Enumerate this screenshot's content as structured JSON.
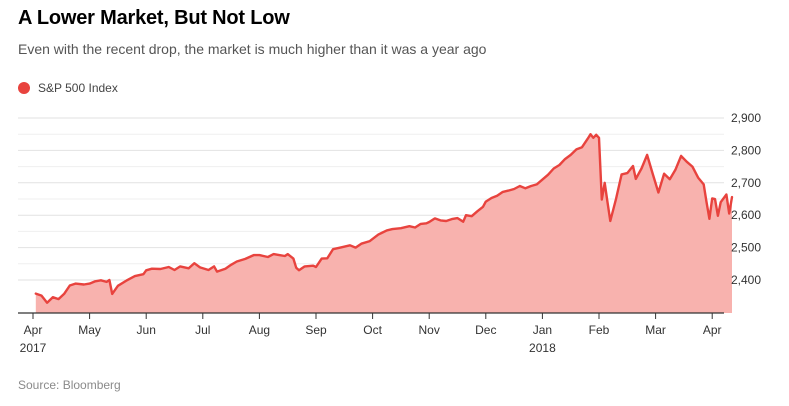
{
  "header": {
    "title": "A Lower Market, But Not Low",
    "subtitle": "Even with the recent drop, the market is much higher than it was a year ago"
  },
  "legend": {
    "label": "S&P 500 Index",
    "color": "#e8433e"
  },
  "footer": {
    "source": "Source: Bloomberg"
  },
  "colors": {
    "line": "#e8433e",
    "fill": "#f8b2ae",
    "grid": "#e2e2e2",
    "axis": "#333333"
  },
  "chart_data": {
    "type": "area",
    "title": "A Lower Market, But Not Low",
    "series_name": "S&P 500 Index",
    "x_domain_months": [
      0,
      12.35
    ],
    "ylim": [
      2300,
      2900
    ],
    "y_ticks": [
      {
        "value": 2400,
        "label": "2,400"
      },
      {
        "value": 2500,
        "label": "2,500"
      },
      {
        "value": 2600,
        "label": "2,600"
      },
      {
        "value": 2700,
        "label": "2,700"
      },
      {
        "value": 2800,
        "label": "2,800"
      },
      {
        "value": 2900,
        "label": "2,900"
      }
    ],
    "x_ticks": [
      {
        "month": 0,
        "label": "Apr",
        "sublabel": "2017"
      },
      {
        "month": 1,
        "label": "May",
        "sublabel": ""
      },
      {
        "month": 2,
        "label": "Jun",
        "sublabel": ""
      },
      {
        "month": 3,
        "label": "Jul",
        "sublabel": ""
      },
      {
        "month": 4,
        "label": "Aug",
        "sublabel": ""
      },
      {
        "month": 5,
        "label": "Sep",
        "sublabel": ""
      },
      {
        "month": 6,
        "label": "Oct",
        "sublabel": ""
      },
      {
        "month": 7,
        "label": "Nov",
        "sublabel": ""
      },
      {
        "month": 8,
        "label": "Dec",
        "sublabel": ""
      },
      {
        "month": 9,
        "label": "Jan",
        "sublabel": "2018"
      },
      {
        "month": 10,
        "label": "Feb",
        "sublabel": ""
      },
      {
        "month": 11,
        "label": "Mar",
        "sublabel": ""
      },
      {
        "month": 12,
        "label": "Apr",
        "sublabel": ""
      }
    ],
    "points": [
      [
        0.05,
        2358
      ],
      [
        0.15,
        2352
      ],
      [
        0.25,
        2330
      ],
      [
        0.35,
        2347
      ],
      [
        0.45,
        2341
      ],
      [
        0.55,
        2357
      ],
      [
        0.65,
        2383
      ],
      [
        0.75,
        2389
      ],
      [
        0.9,
        2386
      ],
      [
        1.0,
        2389
      ],
      [
        1.1,
        2396
      ],
      [
        1.2,
        2399
      ],
      [
        1.3,
        2394
      ],
      [
        1.35,
        2400
      ],
      [
        1.4,
        2357
      ],
      [
        1.5,
        2382
      ],
      [
        1.65,
        2398
      ],
      [
        1.8,
        2412
      ],
      [
        1.95,
        2418
      ],
      [
        2.0,
        2430
      ],
      [
        2.1,
        2435
      ],
      [
        2.25,
        2434
      ],
      [
        2.4,
        2440
      ],
      [
        2.5,
        2431
      ],
      [
        2.6,
        2442
      ],
      [
        2.75,
        2436
      ],
      [
        2.85,
        2452
      ],
      [
        2.95,
        2439
      ],
      [
        3.1,
        2431
      ],
      [
        3.2,
        2442
      ],
      [
        3.25,
        2426
      ],
      [
        3.4,
        2435
      ],
      [
        3.5,
        2447
      ],
      [
        3.6,
        2457
      ],
      [
        3.75,
        2465
      ],
      [
        3.9,
        2477
      ],
      [
        4.0,
        2477
      ],
      [
        4.15,
        2471
      ],
      [
        4.25,
        2480
      ],
      [
        4.35,
        2477
      ],
      [
        4.45,
        2474
      ],
      [
        4.5,
        2480
      ],
      [
        4.6,
        2466
      ],
      [
        4.65,
        2438
      ],
      [
        4.7,
        2430
      ],
      [
        4.8,
        2442
      ],
      [
        4.95,
        2444
      ],
      [
        5.0,
        2440
      ],
      [
        5.1,
        2466
      ],
      [
        5.2,
        2467
      ],
      [
        5.3,
        2495
      ],
      [
        5.45,
        2501
      ],
      [
        5.6,
        2507
      ],
      [
        5.7,
        2500
      ],
      [
        5.8,
        2512
      ],
      [
        5.95,
        2520
      ],
      [
        6.1,
        2540
      ],
      [
        6.25,
        2553
      ],
      [
        6.35,
        2557
      ],
      [
        6.5,
        2560
      ],
      [
        6.65,
        2566
      ],
      [
        6.75,
        2562
      ],
      [
        6.85,
        2573
      ],
      [
        6.95,
        2575
      ],
      [
        7.0,
        2579
      ],
      [
        7.1,
        2590
      ],
      [
        7.2,
        2584
      ],
      [
        7.3,
        2582
      ],
      [
        7.4,
        2588
      ],
      [
        7.5,
        2591
      ],
      [
        7.6,
        2580
      ],
      [
        7.65,
        2600
      ],
      [
        7.75,
        2597
      ],
      [
        7.85,
        2612
      ],
      [
        7.95,
        2626
      ],
      [
        8.0,
        2642
      ],
      [
        8.1,
        2653
      ],
      [
        8.2,
        2660
      ],
      [
        8.3,
        2672
      ],
      [
        8.4,
        2676
      ],
      [
        8.5,
        2681
      ],
      [
        8.6,
        2690
      ],
      [
        8.7,
        2683
      ],
      [
        8.8,
        2690
      ],
      [
        8.9,
        2695
      ],
      [
        9.0,
        2710
      ],
      [
        9.1,
        2725
      ],
      [
        9.2,
        2744
      ],
      [
        9.3,
        2755
      ],
      [
        9.4,
        2773
      ],
      [
        9.5,
        2786
      ],
      [
        9.6,
        2803
      ],
      [
        9.7,
        2810
      ],
      [
        9.8,
        2836
      ],
      [
        9.85,
        2850
      ],
      [
        9.9,
        2839
      ],
      [
        9.95,
        2848
      ],
      [
        10.0,
        2839
      ],
      [
        10.05,
        2648
      ],
      [
        10.1,
        2700
      ],
      [
        10.15,
        2640
      ],
      [
        10.2,
        2582
      ],
      [
        10.3,
        2650
      ],
      [
        10.4,
        2726
      ],
      [
        10.5,
        2730
      ],
      [
        10.6,
        2752
      ],
      [
        10.65,
        2712
      ],
      [
        10.75,
        2744
      ],
      [
        10.85,
        2786
      ],
      [
        10.95,
        2727
      ],
      [
        11.05,
        2670
      ],
      [
        11.15,
        2728
      ],
      [
        11.25,
        2711
      ],
      [
        11.35,
        2740
      ],
      [
        11.45,
        2783
      ],
      [
        11.55,
        2765
      ],
      [
        11.65,
        2750
      ],
      [
        11.75,
        2716
      ],
      [
        11.85,
        2695
      ],
      [
        11.9,
        2641
      ],
      [
        11.95,
        2589
      ],
      [
        12.0,
        2652
      ],
      [
        12.05,
        2650
      ],
      [
        12.1,
        2598
      ],
      [
        12.15,
        2640
      ],
      [
        12.25,
        2664
      ],
      [
        12.3,
        2605
      ],
      [
        12.35,
        2656
      ]
    ]
  }
}
